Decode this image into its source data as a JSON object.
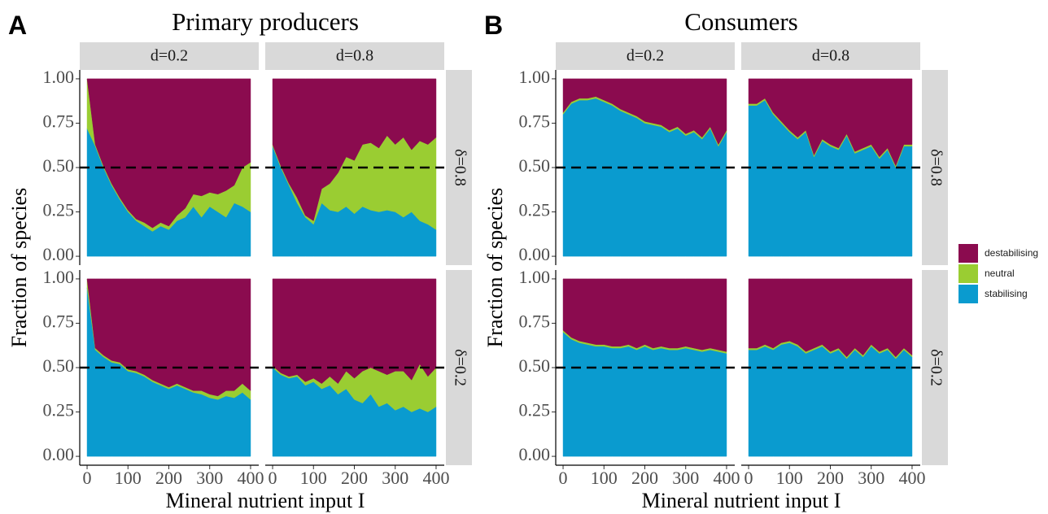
{
  "legend": [
    {
      "name": "destabilising",
      "color": "#8b0b4f"
    },
    {
      "name": "neutral",
      "color": "#9acd32"
    },
    {
      "name": "stabilising",
      "color": "#0a9bcf"
    }
  ],
  "chart_data": [
    {
      "type": "area",
      "label": "A",
      "title": "Primary producers",
      "xlabel": "Mineral nutrient input I",
      "ylabel": "Fraction of species",
      "columns": [
        "d=0.2",
        "d=0.8"
      ],
      "rows": [
        "δ=0.8",
        "δ=0.2"
      ],
      "hline": 0.5,
      "x": [
        0,
        20,
        40,
        60,
        80,
        100,
        120,
        140,
        160,
        180,
        200,
        220,
        240,
        260,
        280,
        300,
        320,
        340,
        360,
        380,
        400
      ],
      "xlim": [
        -18,
        420
      ],
      "xticks": [
        0,
        100,
        200,
        300,
        400
      ],
      "ylim": [
        -0.05,
        1.05
      ],
      "yticks": [
        {
          "value": 0,
          "label": "0.00"
        },
        {
          "value": 0.25,
          "label": "0.25"
        },
        {
          "value": 0.5,
          "label": "0.50"
        },
        {
          "value": 0.75,
          "label": "0.75"
        },
        {
          "value": 1,
          "label": "1.00"
        }
      ],
      "panels": [
        [
          {
            "series": [
              {
                "values": [
                  0,
                  0.37,
                  0.49,
                  0.59,
                  0.67,
                  0.74,
                  0.79,
                  0.81,
                  0.84,
                  0.81,
                  0.83,
                  0.77,
                  0.73,
                  0.65,
                  0.66,
                  0.64,
                  0.65,
                  0.63,
                  0.6,
                  0.5,
                  0.47
                ]
              },
              {
                "values": [
                  0.28,
                  0.01,
                  0.01,
                  0.01,
                  0.01,
                  0.01,
                  0.01,
                  0.02,
                  0.02,
                  0.02,
                  0.02,
                  0.03,
                  0.05,
                  0.07,
                  0.12,
                  0.08,
                  0.1,
                  0.15,
                  0.1,
                  0.22,
                  0.28
                ]
              },
              {
                "values": [
                  0.72,
                  0.62,
                  0.5,
                  0.4,
                  0.32,
                  0.25,
                  0.2,
                  0.17,
                  0.14,
                  0.17,
                  0.15,
                  0.2,
                  0.22,
                  0.28,
                  0.22,
                  0.28,
                  0.25,
                  0.22,
                  0.3,
                  0.28,
                  0.25
                ]
              }
            ]
          },
          {
            "series": [
              {
                "values": [
                  0.37,
                  0.49,
                  0.59,
                  0.67,
                  0.77,
                  0.8,
                  0.62,
                  0.59,
                  0.53,
                  0.44,
                  0.46,
                  0.37,
                  0.36,
                  0.39,
                  0.32,
                  0.37,
                  0.33,
                  0.4,
                  0.35,
                  0.37,
                  0.33
                ]
              },
              {
                "values": [
                  0.01,
                  0.01,
                  0.01,
                  0.03,
                  0.01,
                  0.02,
                  0.08,
                  0.15,
                  0.22,
                  0.28,
                  0.3,
                  0.35,
                  0.38,
                  0.36,
                  0.42,
                  0.38,
                  0.45,
                  0.35,
                  0.45,
                  0.45,
                  0.52
                ]
              },
              {
                "values": [
                  0.62,
                  0.5,
                  0.4,
                  0.3,
                  0.22,
                  0.18,
                  0.3,
                  0.26,
                  0.25,
                  0.28,
                  0.24,
                  0.28,
                  0.26,
                  0.25,
                  0.26,
                  0.25,
                  0.22,
                  0.25,
                  0.2,
                  0.18,
                  0.15
                ]
              }
            ]
          }
        ],
        [
          {
            "series": [
              {
                "values": [
                  0,
                  0.39,
                  0.43,
                  0.46,
                  0.47,
                  0.51,
                  0.52,
                  0.54,
                  0.57,
                  0.59,
                  0.61,
                  0.59,
                  0.61,
                  0.63,
                  0.63,
                  0.65,
                  0.66,
                  0.63,
                  0.63,
                  0.59,
                  0.63
                ]
              },
              {
                "values": [
                  0.05,
                  0.01,
                  0.01,
                  0.01,
                  0.01,
                  0.01,
                  0.01,
                  0.01,
                  0.01,
                  0.01,
                  0.01,
                  0.01,
                  0.01,
                  0.01,
                  0.02,
                  0.02,
                  0.02,
                  0.03,
                  0.04,
                  0.05,
                  0.05
                ]
              },
              {
                "values": [
                  0.95,
                  0.6,
                  0.56,
                  0.53,
                  0.52,
                  0.48,
                  0.47,
                  0.45,
                  0.42,
                  0.4,
                  0.38,
                  0.4,
                  0.38,
                  0.36,
                  0.35,
                  0.33,
                  0.32,
                  0.34,
                  0.33,
                  0.36,
                  0.32
                ]
              }
            ]
          },
          {
            "series": [
              {
                "values": [
                  0.49,
                  0.53,
                  0.55,
                  0.54,
                  0.58,
                  0.56,
                  0.59,
                  0.55,
                  0.59,
                  0.52,
                  0.56,
                  0.52,
                  0.5,
                  0.52,
                  0.54,
                  0.52,
                  0.52,
                  0.57,
                  0.48,
                  0.55,
                  0.5
                ]
              },
              {
                "values": [
                  0.01,
                  0.01,
                  0.01,
                  0.01,
                  0.02,
                  0.02,
                  0.03,
                  0.05,
                  0.06,
                  0.1,
                  0.12,
                  0.18,
                  0.15,
                  0.2,
                  0.16,
                  0.22,
                  0.2,
                  0.18,
                  0.25,
                  0.2,
                  0.22
                ]
              },
              {
                "values": [
                  0.5,
                  0.46,
                  0.44,
                  0.45,
                  0.4,
                  0.42,
                  0.38,
                  0.4,
                  0.35,
                  0.38,
                  0.32,
                  0.3,
                  0.35,
                  0.28,
                  0.3,
                  0.26,
                  0.28,
                  0.25,
                  0.27,
                  0.25,
                  0.28
                ]
              }
            ]
          }
        ]
      ]
    },
    {
      "type": "area",
      "label": "B",
      "title": "Consumers",
      "xlabel": "Mineral nutrient input I",
      "ylabel": "Fraction of species",
      "columns": [
        "d=0.2",
        "d=0.8"
      ],
      "rows": [
        "δ=0.8",
        "δ=0.2"
      ],
      "hline": 0.5,
      "x": [
        0,
        20,
        40,
        60,
        80,
        100,
        120,
        140,
        160,
        180,
        200,
        220,
        240,
        260,
        280,
        300,
        320,
        340,
        360,
        380,
        400
      ],
      "xlim": [
        -18,
        420
      ],
      "xticks": [
        0,
        100,
        200,
        300,
        400
      ],
      "ylim": [
        -0.05,
        1.05
      ],
      "yticks": [
        {
          "value": 0,
          "label": "0.00"
        },
        {
          "value": 0.25,
          "label": "0.25"
        },
        {
          "value": 0.5,
          "label": "0.50"
        },
        {
          "value": 0.75,
          "label": "0.75"
        },
        {
          "value": 1,
          "label": "1.00"
        }
      ],
      "panels": [
        [
          {
            "series": [
              {
                "values": [
                  0.19,
                  0.13,
                  0.11,
                  0.11,
                  0.1,
                  0.12,
                  0.14,
                  0.17,
                  0.19,
                  0.21,
                  0.24,
                  0.25,
                  0.26,
                  0.29,
                  0.27,
                  0.31,
                  0.29,
                  0.33,
                  0.27,
                  0.37,
                  0.29
                ]
              },
              {
                "values": [
                  0.01,
                  0.01,
                  0.01,
                  0.01,
                  0.01,
                  0.01,
                  0.01,
                  0.01,
                  0.01,
                  0.01,
                  0.01,
                  0.01,
                  0.01,
                  0.01,
                  0.01,
                  0.01,
                  0.01,
                  0.01,
                  0.01,
                  0.01,
                  0.01
                ]
              },
              {
                "values": [
                  0.8,
                  0.86,
                  0.88,
                  0.88,
                  0.89,
                  0.87,
                  0.85,
                  0.82,
                  0.8,
                  0.78,
                  0.75,
                  0.74,
                  0.73,
                  0.7,
                  0.72,
                  0.68,
                  0.7,
                  0.66,
                  0.72,
                  0.62,
                  0.7
                ]
              }
            ]
          },
          {
            "series": [
              {
                "values": [
                  0.14,
                  0.14,
                  0.11,
                  0.19,
                  0.24,
                  0.29,
                  0.33,
                  0.29,
                  0.43,
                  0.34,
                  0.37,
                  0.39,
                  0.31,
                  0.41,
                  0.39,
                  0.37,
                  0.44,
                  0.39,
                  0.49,
                  0.37,
                  0.37
                ]
              },
              {
                "values": [
                  0.01,
                  0.01,
                  0.01,
                  0.01,
                  0.01,
                  0.01,
                  0.01,
                  0.01,
                  0.01,
                  0.01,
                  0.01,
                  0.01,
                  0.01,
                  0.01,
                  0.01,
                  0.01,
                  0.01,
                  0.01,
                  0.01,
                  0.01,
                  0.01
                ]
              },
              {
                "values": [
                  0.85,
                  0.85,
                  0.88,
                  0.8,
                  0.75,
                  0.7,
                  0.66,
                  0.7,
                  0.56,
                  0.65,
                  0.62,
                  0.6,
                  0.68,
                  0.58,
                  0.6,
                  0.62,
                  0.55,
                  0.6,
                  0.5,
                  0.62,
                  0.62
                ]
              }
            ]
          }
        ],
        [
          {
            "series": [
              {
                "values": [
                  0.29,
                  0.33,
                  0.35,
                  0.36,
                  0.37,
                  0.37,
                  0.38,
                  0.38,
                  0.37,
                  0.39,
                  0.37,
                  0.39,
                  0.38,
                  0.39,
                  0.39,
                  0.38,
                  0.39,
                  0.4,
                  0.39,
                  0.4,
                  0.41
                ]
              },
              {
                "values": [
                  0.01,
                  0.01,
                  0.01,
                  0.01,
                  0.01,
                  0.01,
                  0.01,
                  0.01,
                  0.01,
                  0.01,
                  0.01,
                  0.01,
                  0.01,
                  0.01,
                  0.01,
                  0.01,
                  0.01,
                  0.01,
                  0.01,
                  0.01,
                  0.01
                ]
              },
              {
                "values": [
                  0.7,
                  0.66,
                  0.64,
                  0.63,
                  0.62,
                  0.62,
                  0.61,
                  0.61,
                  0.62,
                  0.6,
                  0.62,
                  0.6,
                  0.61,
                  0.6,
                  0.6,
                  0.61,
                  0.6,
                  0.59,
                  0.6,
                  0.59,
                  0.58
                ]
              }
            ]
          },
          {
            "series": [
              {
                "values": [
                  0.39,
                  0.39,
                  0.37,
                  0.39,
                  0.36,
                  0.35,
                  0.37,
                  0.41,
                  0.39,
                  0.37,
                  0.41,
                  0.39,
                  0.44,
                  0.39,
                  0.43,
                  0.37,
                  0.41,
                  0.39,
                  0.44,
                  0.39,
                  0.43
                ]
              },
              {
                "values": [
                  0.01,
                  0.01,
                  0.01,
                  0.01,
                  0.01,
                  0.01,
                  0.01,
                  0.01,
                  0.01,
                  0.01,
                  0.01,
                  0.01,
                  0.01,
                  0.01,
                  0.01,
                  0.01,
                  0.01,
                  0.01,
                  0.01,
                  0.01,
                  0.01
                ]
              },
              {
                "values": [
                  0.6,
                  0.6,
                  0.62,
                  0.6,
                  0.63,
                  0.64,
                  0.62,
                  0.58,
                  0.6,
                  0.62,
                  0.58,
                  0.6,
                  0.55,
                  0.6,
                  0.56,
                  0.62,
                  0.58,
                  0.6,
                  0.55,
                  0.6,
                  0.56
                ]
              }
            ]
          }
        ]
      ]
    }
  ]
}
